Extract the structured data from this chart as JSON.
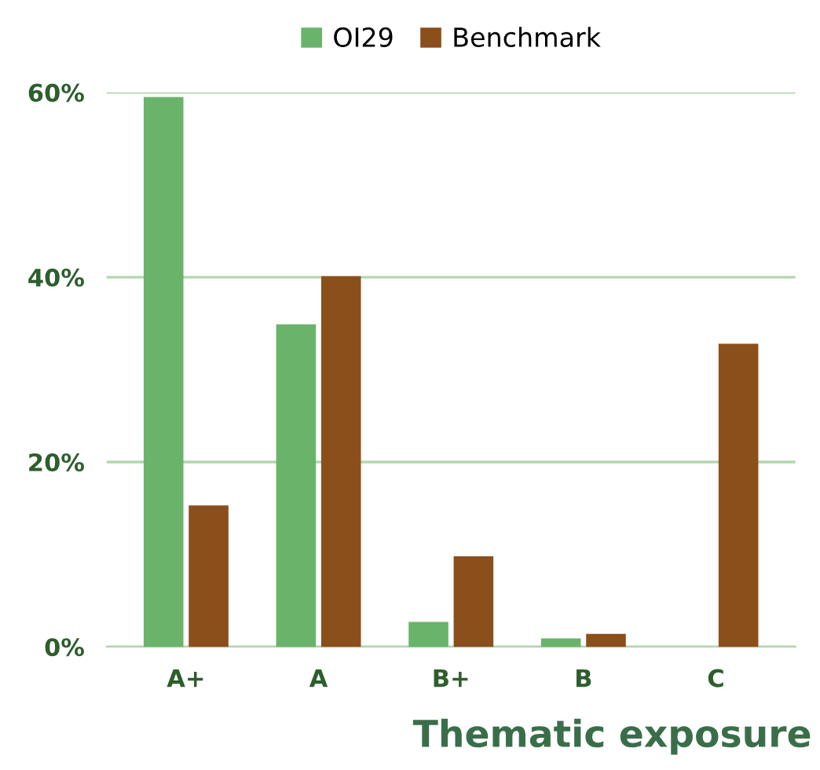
{
  "chart_data": {
    "type": "bar",
    "categories": [
      "A+",
      "A",
      "B+",
      "B",
      "C"
    ],
    "series": [
      {
        "name": "OI29",
        "color": "#6ab36b",
        "values": [
          59.5,
          34.9,
          2.7,
          0.9,
          0
        ]
      },
      {
        "name": "Benchmark",
        "color": "#8b4f1c",
        "values": [
          15.3,
          40.1,
          9.8,
          1.4,
          32.8
        ]
      }
    ],
    "xlabel": "Thematic exposure",
    "ylim": [
      0,
      60
    ],
    "yticks": [
      {
        "value": 0,
        "label": "0%"
      },
      {
        "value": 20,
        "label": "20%"
      },
      {
        "value": 40,
        "label": "40%"
      },
      {
        "value": 60,
        "label": "60%"
      }
    ],
    "grid": "y",
    "legend": "top"
  }
}
